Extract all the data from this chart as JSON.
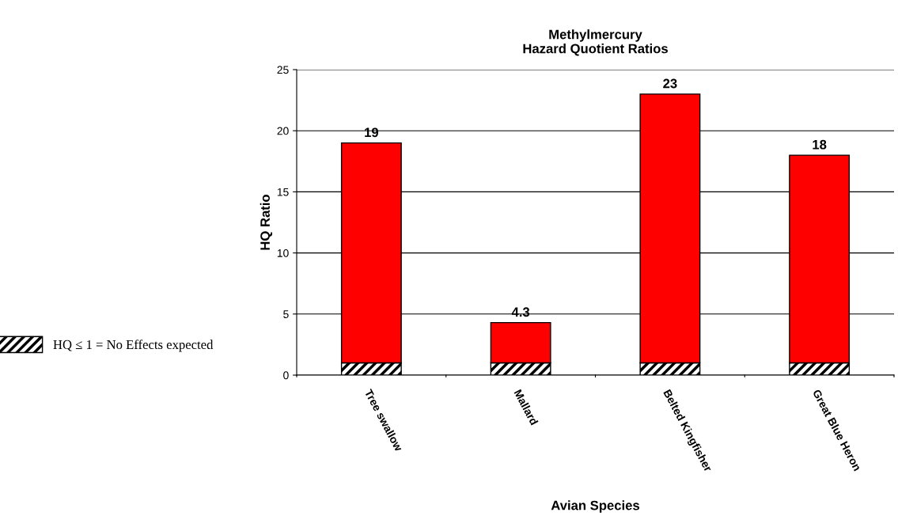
{
  "chart_data": {
    "type": "bar",
    "title": "Methylmercury\nHazard Quotient Ratios",
    "xlabel": "Avian Species",
    "ylabel": "HQ Ratio",
    "categories": [
      "Tree swallow",
      "Mallard",
      "Belted Kingfisher",
      "Great Blue Heron"
    ],
    "stacked": true,
    "series": [
      {
        "name": "HQ ≤ 1 = No Effects expected",
        "color": "#000000",
        "values": [
          1,
          1,
          1,
          1
        ]
      },
      {
        "color": "#ff0000",
        "values": [
          18,
          3.3,
          22,
          17
        ]
      }
    ],
    "totals": [
      "19",
      "4.3",
      "23",
      "18"
    ],
    "ylim": [
      0,
      25
    ],
    "yticks": [
      0,
      5,
      10,
      15,
      20,
      25
    ],
    "grid": "y",
    "legend": "left"
  }
}
